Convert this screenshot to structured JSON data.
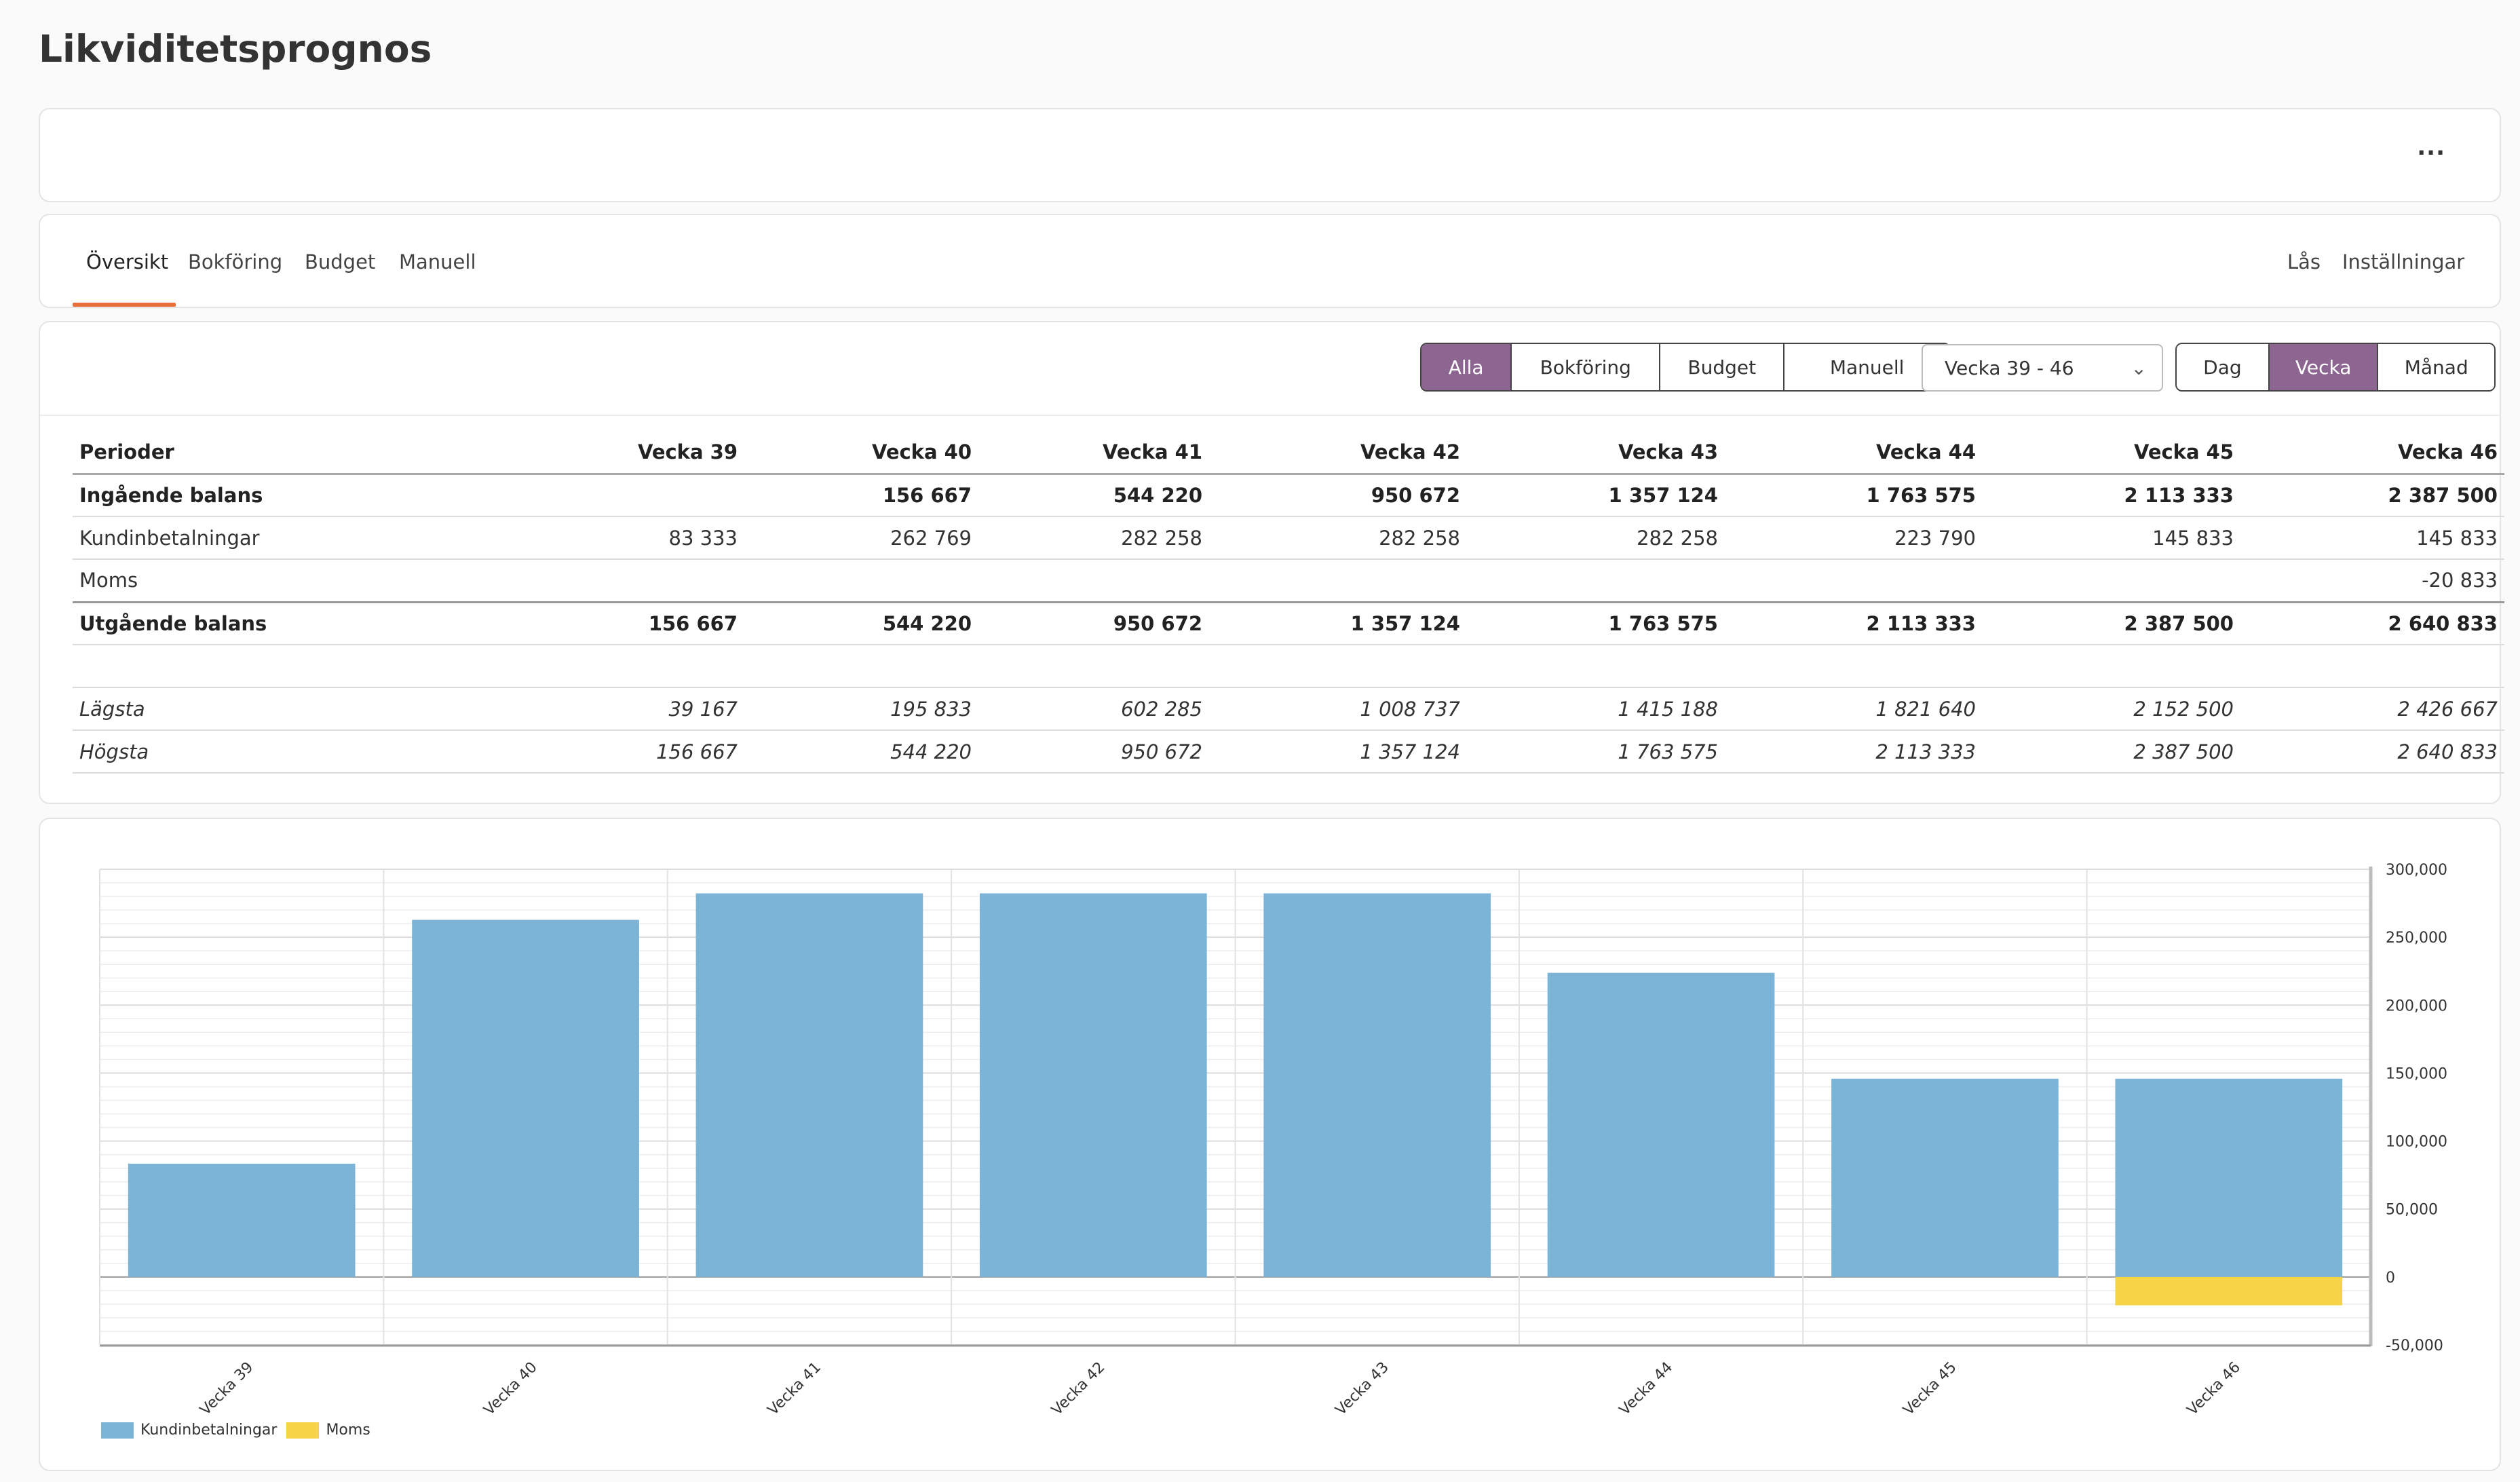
{
  "page": {
    "title": "Likviditetsprognos"
  },
  "top_bar": {
    "more_label": "..."
  },
  "nav": {
    "tabs": [
      "Översikt",
      "Bokföring",
      "Budget",
      "Manuell"
    ],
    "active_tab": "Översikt",
    "right_links": [
      "Lås",
      "Inställningar"
    ]
  },
  "toolbar": {
    "source_filter": {
      "options": [
        "Alla",
        "Bokföring",
        "Budget",
        "Manuell"
      ],
      "selected": "Alla"
    },
    "week_range": "Vecka 39 - 46",
    "period_toggle": {
      "options": [
        "Dag",
        "Vecka",
        "Månad"
      ],
      "selected": "Vecka"
    },
    "accent_color": "#8c6590"
  },
  "table": {
    "headers": [
      "Perioder",
      "Vecka 39",
      "Vecka 40",
      "Vecka 41",
      "Vecka 42",
      "Vecka 43",
      "Vecka 44",
      "Vecka 45",
      "Vecka 46"
    ],
    "rows": [
      {
        "label": "Ingående balans",
        "values": [
          "",
          "156 667",
          "544 220",
          "950 672",
          "1 357 124",
          "1 763 575",
          "2 113 333",
          "2 387 500"
        ]
      },
      {
        "label": "Kundinbetalningar",
        "values": [
          "83 333",
          "262 769",
          "282 258",
          "282 258",
          "282 258",
          "223 790",
          "145 833",
          "145 833"
        ]
      },
      {
        "label": "Moms",
        "values": [
          "",
          "",
          "",
          "",
          "",
          "",
          "",
          "-20 833"
        ]
      },
      {
        "label": "Utgående balans",
        "values": [
          "156 667",
          "544 220",
          "950 672",
          "1 357 124",
          "1 763 575",
          "2 113 333",
          "2 387 500",
          "2 640 833"
        ]
      },
      {
        "label": "",
        "values": [
          "",
          "",
          "",
          "",
          "",
          "",
          "",
          ""
        ]
      },
      {
        "label": "Lägsta",
        "values": [
          "39 167",
          "195 833",
          "602 285",
          "1 008 737",
          "1 415 188",
          "1 821 640",
          "2 152 500",
          "2 426 667"
        ]
      },
      {
        "label": "Högsta",
        "values": [
          "156 667",
          "544 220",
          "950 672",
          "1 357 124",
          "1 763 575",
          "2 113 333",
          "2 387 500",
          "2 640 833"
        ]
      }
    ]
  },
  "chart_data": {
    "type": "bar",
    "stacked": true,
    "categories": [
      "Vecka 39",
      "Vecka 40",
      "Vecka 41",
      "Vecka 42",
      "Vecka 43",
      "Vecka 44",
      "Vecka 45",
      "Vecka 46"
    ],
    "series": [
      {
        "name": "Kundinbetalningar",
        "color": "#7cb4d8",
        "values": [
          83333,
          262769,
          282258,
          282258,
          282258,
          223790,
          145833,
          145833
        ]
      },
      {
        "name": "Moms",
        "color": "#f6d447",
        "values": [
          0,
          0,
          0,
          0,
          0,
          0,
          0,
          -20833
        ]
      }
    ],
    "ylim": [
      -50000,
      300000
    ],
    "yticks": [
      300000,
      250000,
      200000,
      150000,
      100000,
      50000,
      0,
      -50000
    ],
    "ytick_labels": [
      "300,000",
      "250,000",
      "200,000",
      "150,000",
      "100,000",
      "50,000",
      "0",
      "-50,000"
    ],
    "y_axis_side": "right",
    "grid": true,
    "legend_position": "bottom-left"
  }
}
